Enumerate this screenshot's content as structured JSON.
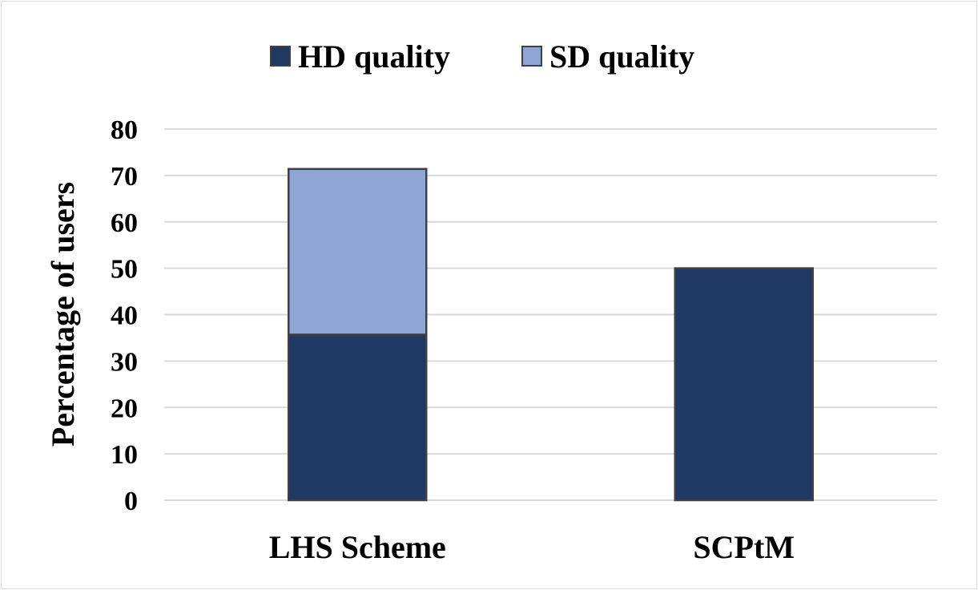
{
  "chart_data": {
    "type": "bar",
    "stacked": true,
    "categories": [
      "LHS Scheme",
      "SCPtM"
    ],
    "series": [
      {
        "name": "HD quality",
        "values": [
          35.7,
          50
        ],
        "color": "#203864"
      },
      {
        "name": "SD quality",
        "values": [
          35.7,
          0
        ],
        "color": "#8FA5D6"
      }
    ],
    "title": "",
    "xlabel": "",
    "ylabel": "Percentage of users",
    "ylim": [
      0,
      80
    ],
    "yticks": [
      0,
      10,
      20,
      30,
      40,
      50,
      60,
      70,
      80
    ],
    "grid": true,
    "legend_position": "top"
  }
}
